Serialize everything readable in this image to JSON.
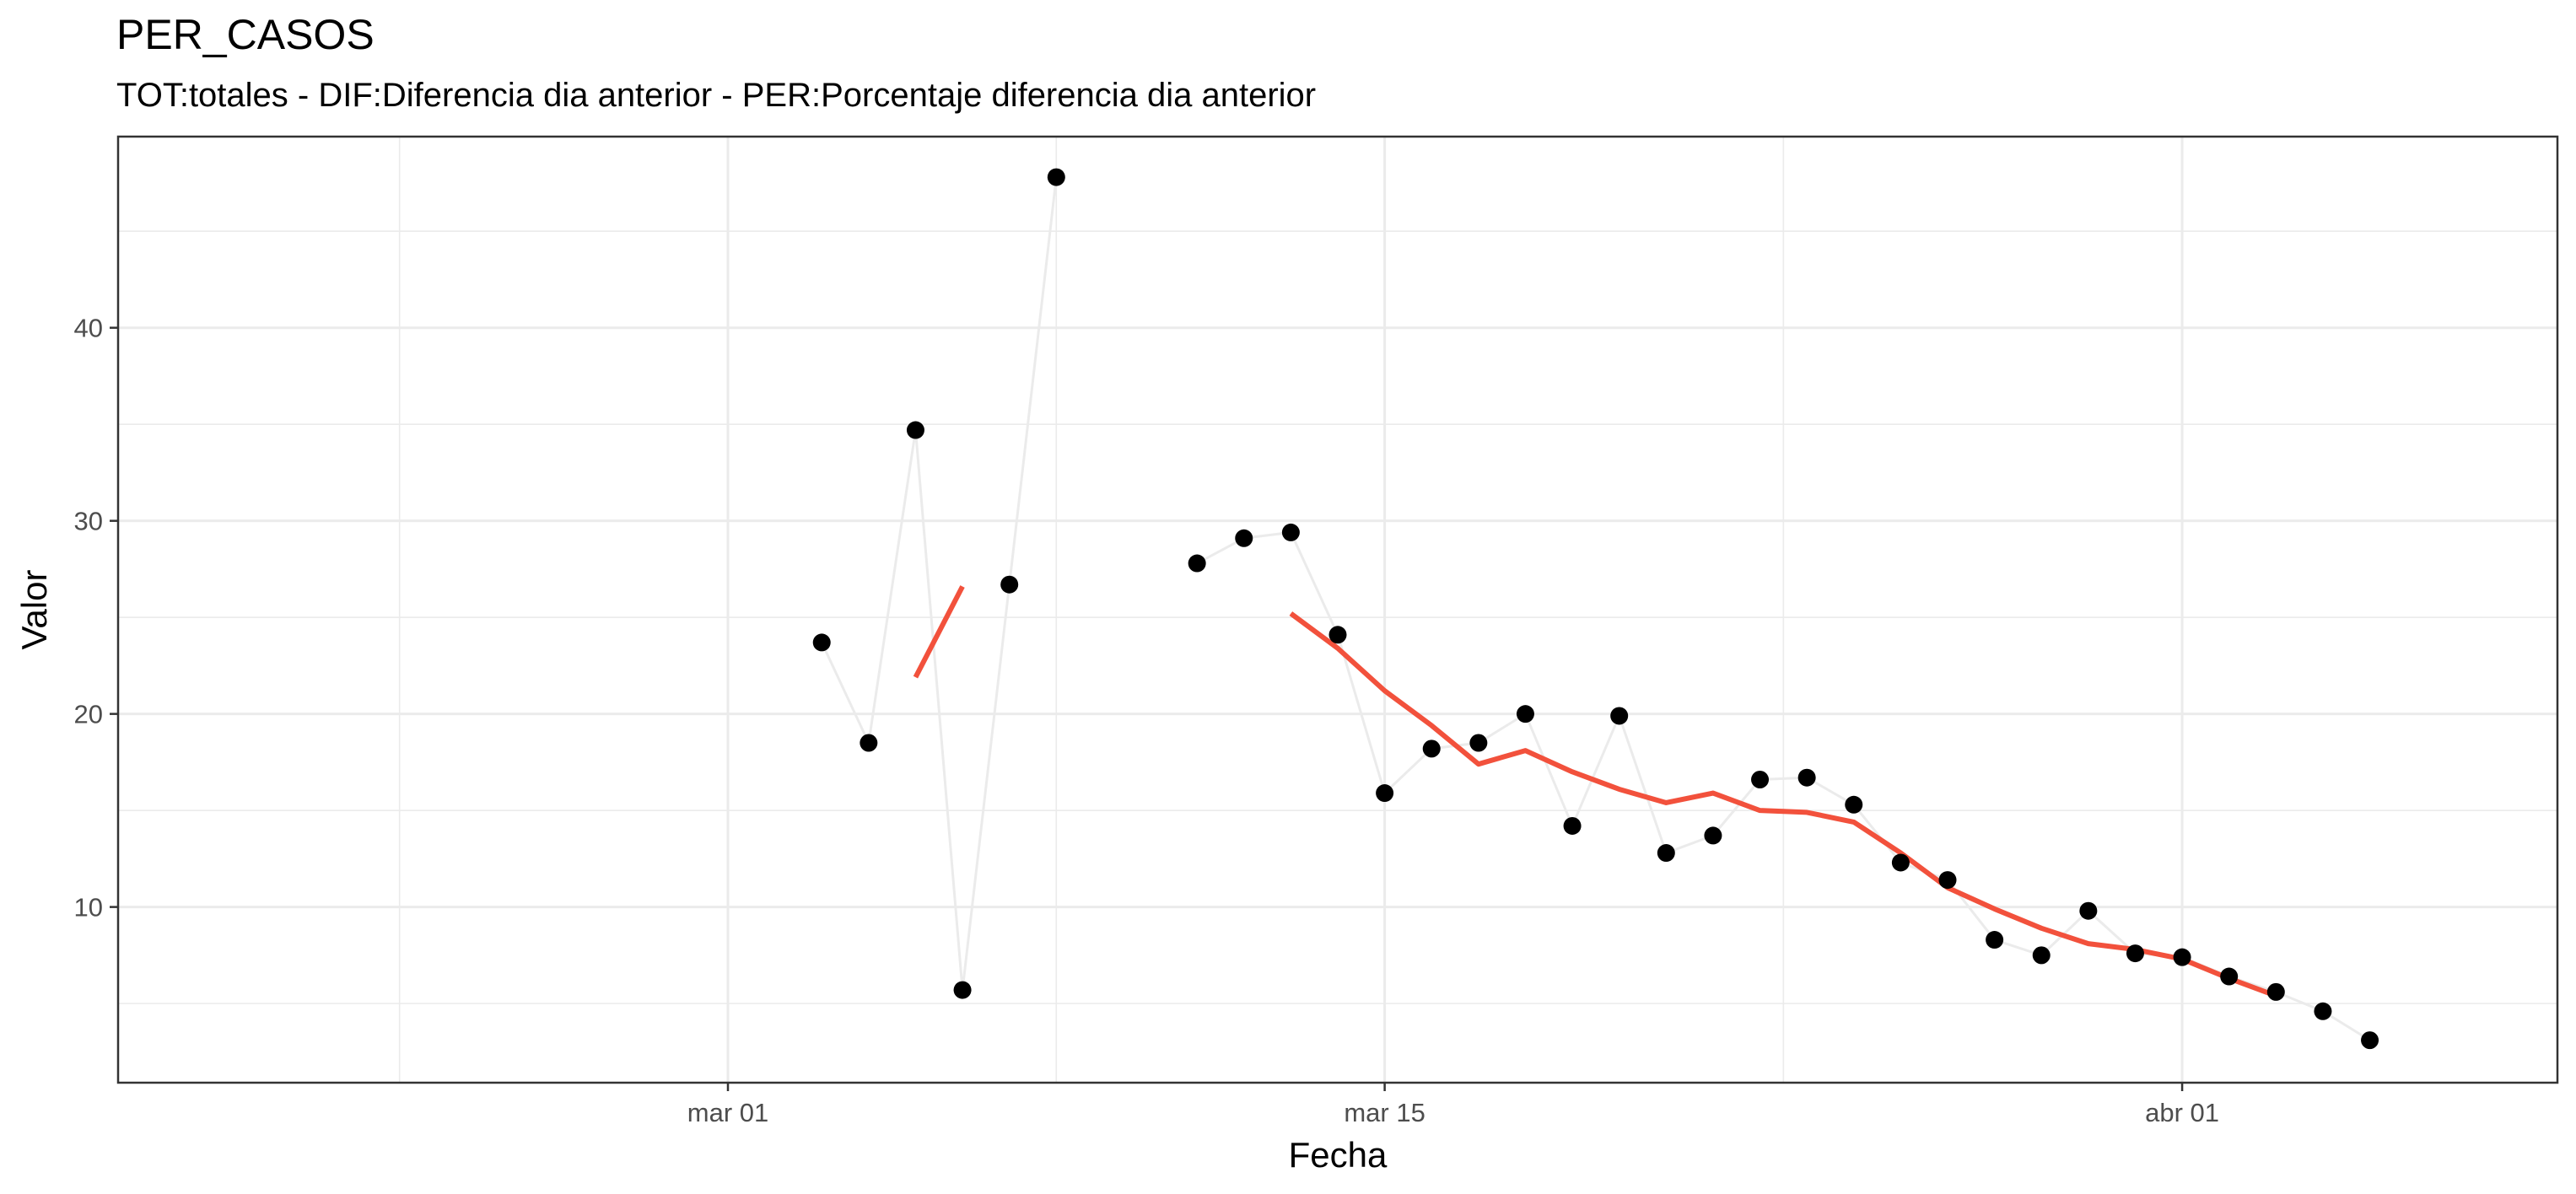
{
  "chart_data": {
    "type": "scatter",
    "title": "PER_CASOS",
    "subtitle": "TOT:totales - DIF:Diferencia dia anterior - PER:Porcentaje diferencia dia anterior",
    "xlabel": "Fecha",
    "ylabel": "Valor",
    "xlim": [
      "2020-02-17",
      "2020-04-09"
    ],
    "ylim": [
      0.9,
      49.9
    ],
    "x_ticks": [
      "2020-03-01",
      "2020-03-15",
      "2020-04-01"
    ],
    "x_tick_labels": [
      "mar 01",
      "mar 15",
      "abr 01"
    ],
    "y_ticks": [
      10,
      20,
      30,
      40
    ],
    "grid": true,
    "legend": "none",
    "colors": {
      "points": "#000000",
      "connector": "#ebebeb",
      "smooth": "#f2513c",
      "grid": "#ebebeb",
      "panel_border": "#333333"
    },
    "series": [
      {
        "kind": "points",
        "points": [
          {
            "x": "2020-03-03",
            "y": 23.7
          },
          {
            "x": "2020-03-04",
            "y": 18.5
          },
          {
            "x": "2020-03-05",
            "y": 34.7
          },
          {
            "x": "2020-03-06",
            "y": 5.7
          },
          {
            "x": "2020-03-07",
            "y": 26.7
          },
          {
            "x": "2020-03-08",
            "y": 47.8
          },
          {
            "x": "2020-03-11",
            "y": 27.8
          },
          {
            "x": "2020-03-12",
            "y": 29.1
          },
          {
            "x": "2020-03-13",
            "y": 29.4
          },
          {
            "x": "2020-03-14",
            "y": 24.1
          },
          {
            "x": "2020-03-15",
            "y": 15.9
          },
          {
            "x": "2020-03-16",
            "y": 18.2
          },
          {
            "x": "2020-03-17",
            "y": 18.5
          },
          {
            "x": "2020-03-18",
            "y": 20.0
          },
          {
            "x": "2020-03-19",
            "y": 14.2
          },
          {
            "x": "2020-03-20",
            "y": 19.9
          },
          {
            "x": "2020-03-21",
            "y": 12.8
          },
          {
            "x": "2020-03-22",
            "y": 13.7
          },
          {
            "x": "2020-03-23",
            "y": 16.6
          },
          {
            "x": "2020-03-24",
            "y": 16.7
          },
          {
            "x": "2020-03-25",
            "y": 15.3
          },
          {
            "x": "2020-03-26",
            "y": 12.3
          },
          {
            "x": "2020-03-27",
            "y": 11.4
          },
          {
            "x": "2020-03-28",
            "y": 8.3
          },
          {
            "x": "2020-03-29",
            "y": 7.5
          },
          {
            "x": "2020-03-30",
            "y": 9.8
          },
          {
            "x": "2020-03-31",
            "y": 7.6
          },
          {
            "x": "2020-04-01",
            "y": 7.4
          },
          {
            "x": "2020-04-02",
            "y": 6.4
          },
          {
            "x": "2020-04-03",
            "y": 5.6
          },
          {
            "x": "2020-04-04",
            "y": 4.6
          },
          {
            "x": "2020-04-05",
            "y": 3.1
          }
        ]
      },
      {
        "kind": "smooth",
        "segments": [
          [
            {
              "x": "2020-03-05",
              "y": 21.9
            },
            {
              "x": "2020-03-06",
              "y": 26.6
            }
          ],
          [
            {
              "x": "2020-03-13",
              "y": 25.2
            },
            {
              "x": "2020-03-14",
              "y": 23.4
            },
            {
              "x": "2020-03-15",
              "y": 21.2
            },
            {
              "x": "2020-03-16",
              "y": 19.4
            },
            {
              "x": "2020-03-17",
              "y": 17.4
            },
            {
              "x": "2020-03-18",
              "y": 18.1
            },
            {
              "x": "2020-03-19",
              "y": 17.0
            },
            {
              "x": "2020-03-20",
              "y": 16.1
            },
            {
              "x": "2020-03-21",
              "y": 15.4
            },
            {
              "x": "2020-03-22",
              "y": 15.9
            },
            {
              "x": "2020-03-23",
              "y": 15.0
            },
            {
              "x": "2020-03-24",
              "y": 14.9
            },
            {
              "x": "2020-03-25",
              "y": 14.4
            },
            {
              "x": "2020-03-26",
              "y": 12.8
            },
            {
              "x": "2020-03-27",
              "y": 11.0
            },
            {
              "x": "2020-03-28",
              "y": 9.9
            },
            {
              "x": "2020-03-29",
              "y": 8.9
            },
            {
              "x": "2020-03-30",
              "y": 8.1
            },
            {
              "x": "2020-03-31",
              "y": 7.8
            },
            {
              "x": "2020-04-01",
              "y": 7.3
            },
            {
              "x": "2020-04-02",
              "y": 6.3
            },
            {
              "x": "2020-04-03",
              "y": 5.4
            }
          ]
        ]
      }
    ]
  }
}
